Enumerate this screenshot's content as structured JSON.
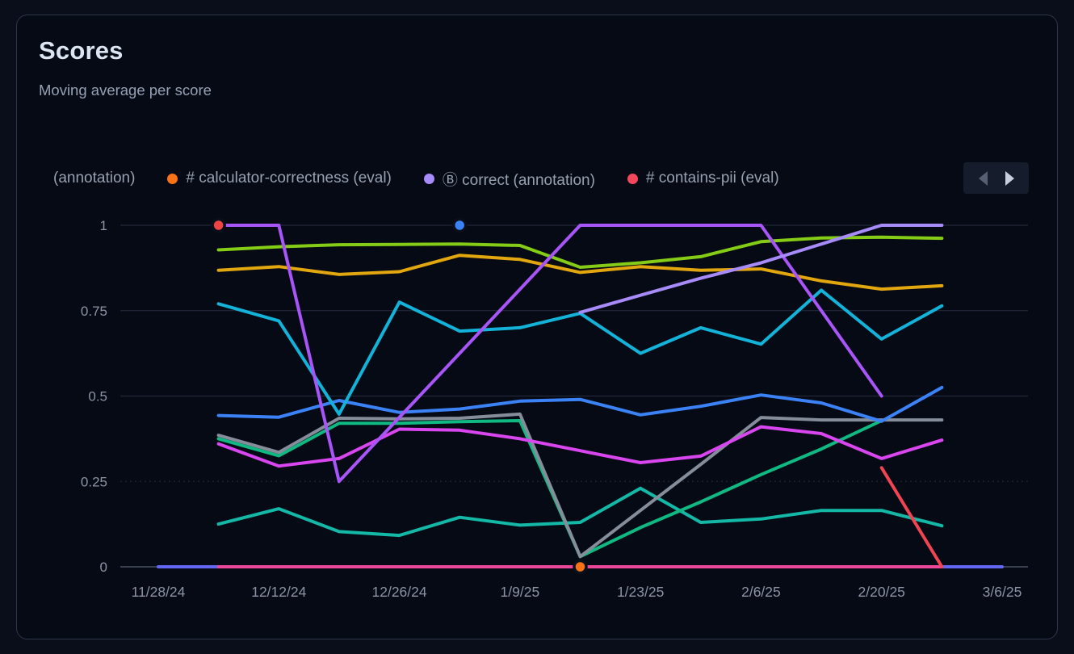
{
  "card": {
    "title": "Scores",
    "subtitle": "Moving average per score"
  },
  "legend": {
    "items": [
      {
        "label": "(annotation)",
        "color": null
      },
      {
        "label": "# calculator-correctness (eval)",
        "color": "#f97316"
      },
      {
        "label": "Ⓑ correct (annotation)",
        "color": "#a78bfa"
      },
      {
        "label": "# contains-pii (eval)",
        "color": "#f5475c"
      }
    ]
  },
  "chart_data": {
    "type": "line",
    "title": "Scores",
    "ylim": [
      0,
      1
    ],
    "grid": true,
    "x_unit": "days since 11/28/24, weekly points",
    "x_ticks": [
      {
        "day": 0,
        "label": "11/28/24"
      },
      {
        "day": 14,
        "label": "12/12/24"
      },
      {
        "day": 28,
        "label": "12/26/24"
      },
      {
        "day": 42,
        "label": "1/9/25"
      },
      {
        "day": 56,
        "label": "1/23/25"
      },
      {
        "day": 70,
        "label": "2/6/25"
      },
      {
        "day": 84,
        "label": "2/20/25"
      },
      {
        "day": 98,
        "label": "3/6/25"
      }
    ],
    "y_ticks": [
      {
        "v": 0,
        "label": "0"
      },
      {
        "v": 0.25,
        "label": "0.25"
      },
      {
        "v": 0.5,
        "label": "0.5"
      },
      {
        "v": 0.75,
        "label": "0.75"
      },
      {
        "v": 1,
        "label": "1"
      }
    ],
    "series": [
      {
        "name": "flat-zero-indigo",
        "color": "#6366f1",
        "points": [
          [
            0,
            0
          ],
          [
            98,
            0
          ]
        ]
      },
      {
        "name": "flat-zero-pink",
        "color": "#ec4899",
        "points": [
          [
            7,
            0
          ],
          [
            91,
            0
          ]
        ]
      },
      {
        "name": "teal-low",
        "color": "#14b8a6",
        "points": [
          [
            7,
            0.125
          ],
          [
            14,
            0.17
          ],
          [
            21,
            0.103
          ],
          [
            28,
            0.092
          ],
          [
            35,
            0.145
          ],
          [
            42,
            0.122
          ],
          [
            49,
            0.13
          ],
          [
            56,
            0.23
          ],
          [
            63,
            0.13
          ],
          [
            70,
            0.14
          ],
          [
            77,
            0.165
          ],
          [
            84,
            0.165
          ],
          [
            91,
            0.12
          ]
        ]
      },
      {
        "name": "emerald",
        "color": "#10b981",
        "points": [
          [
            7,
            0.375
          ],
          [
            14,
            0.325
          ],
          [
            21,
            0.42
          ],
          [
            28,
            0.42
          ],
          [
            35,
            0.425
          ],
          [
            42,
            0.428
          ],
          [
            49,
            0.03
          ],
          [
            56,
            0.115
          ],
          [
            63,
            0.19
          ],
          [
            70,
            0.27
          ],
          [
            77,
            0.345
          ],
          [
            84,
            0.428
          ]
        ]
      },
      {
        "name": "gray",
        "color": "#858d9a",
        "points": [
          [
            7,
            0.385
          ],
          [
            14,
            0.335
          ],
          [
            21,
            0.435
          ],
          [
            28,
            0.433
          ],
          [
            35,
            0.435
          ],
          [
            42,
            0.447
          ],
          [
            49,
            0.03
          ],
          [
            56,
            0.165
          ],
          [
            63,
            0.3
          ],
          [
            70,
            0.437
          ],
          [
            77,
            0.43
          ],
          [
            84,
            0.43
          ],
          [
            91,
            0.43
          ]
        ]
      },
      {
        "name": "magenta",
        "color": "#d946ef",
        "points": [
          [
            7,
            0.36
          ],
          [
            14,
            0.295
          ],
          [
            21,
            0.317
          ],
          [
            28,
            0.403
          ],
          [
            35,
            0.4
          ],
          [
            42,
            0.375
          ],
          [
            49,
            0.34
          ],
          [
            56,
            0.305
          ],
          [
            63,
            0.324
          ],
          [
            70,
            0.41
          ],
          [
            77,
            0.39
          ],
          [
            84,
            0.317
          ],
          [
            91,
            0.371
          ]
        ]
      },
      {
        "name": "blue",
        "color": "#3b82f6",
        "points": [
          [
            7,
            0.443
          ],
          [
            14,
            0.438
          ],
          [
            21,
            0.487
          ],
          [
            28,
            0.452
          ],
          [
            35,
            0.462
          ],
          [
            42,
            0.485
          ],
          [
            49,
            0.49
          ],
          [
            56,
            0.445
          ],
          [
            63,
            0.47
          ],
          [
            70,
            0.503
          ],
          [
            77,
            0.48
          ],
          [
            84,
            0.426
          ],
          [
            91,
            0.525
          ]
        ]
      },
      {
        "name": "cyan",
        "color": "#13b3d9",
        "points": [
          [
            7,
            0.77
          ],
          [
            14,
            0.72
          ],
          [
            21,
            0.447
          ],
          [
            28,
            0.775
          ],
          [
            35,
            0.69
          ],
          [
            42,
            0.7
          ],
          [
            49,
            0.742
          ],
          [
            56,
            0.625
          ],
          [
            63,
            0.7
          ],
          [
            70,
            0.652
          ],
          [
            77,
            0.81
          ],
          [
            84,
            0.667
          ],
          [
            91,
            0.764
          ]
        ]
      },
      {
        "name": "lime",
        "color": "#84cc16",
        "points": [
          [
            7,
            0.928
          ],
          [
            14,
            0.937
          ],
          [
            21,
            0.943
          ],
          [
            28,
            0.944
          ],
          [
            35,
            0.945
          ],
          [
            42,
            0.941
          ],
          [
            49,
            0.877
          ],
          [
            56,
            0.89
          ],
          [
            63,
            0.908
          ],
          [
            70,
            0.952
          ],
          [
            77,
            0.963
          ],
          [
            84,
            0.965
          ],
          [
            91,
            0.962
          ]
        ]
      },
      {
        "name": "amber",
        "color": "#e2a60f",
        "points": [
          [
            7,
            0.868
          ],
          [
            14,
            0.879
          ],
          [
            21,
            0.856
          ],
          [
            28,
            0.864
          ],
          [
            35,
            0.912
          ],
          [
            42,
            0.9
          ],
          [
            49,
            0.862
          ],
          [
            56,
            0.879
          ],
          [
            63,
            0.868
          ],
          [
            70,
            0.872
          ],
          [
            77,
            0.837
          ],
          [
            84,
            0.813
          ],
          [
            91,
            0.823
          ]
        ]
      },
      {
        "name": "purple-a",
        "color": "#a855f7",
        "points": [
          [
            7,
            1
          ],
          [
            14,
            1
          ],
          [
            21,
            0.25
          ],
          [
            28,
            0.4375
          ],
          [
            35,
            0.625
          ],
          [
            42,
            0.8125
          ],
          [
            49,
            1
          ],
          [
            56,
            1
          ],
          [
            63,
            1
          ],
          [
            70,
            1
          ],
          [
            77,
            0.75
          ],
          [
            84,
            0.5
          ]
        ]
      },
      {
        "name": "violet-b",
        "color": "#a78bfa",
        "points": [
          [
            49,
            0.745
          ],
          [
            56,
            0.795
          ],
          [
            63,
            0.845
          ],
          [
            70,
            0.89
          ],
          [
            77,
            0.945
          ],
          [
            84,
            1
          ],
          [
            91,
            1
          ]
        ]
      },
      {
        "name": "red",
        "color": "#f04452",
        "points": [
          [
            84,
            0.29
          ],
          [
            91,
            0
          ]
        ]
      }
    ],
    "markers": [
      {
        "name": "red-point",
        "day": 7,
        "v": 1,
        "color": "#ef4444"
      },
      {
        "name": "blue-point",
        "day": 35,
        "v": 1,
        "color": "#3b82f6"
      },
      {
        "name": "orange-point",
        "day": 49,
        "v": 0,
        "color": "#f97316"
      }
    ]
  }
}
